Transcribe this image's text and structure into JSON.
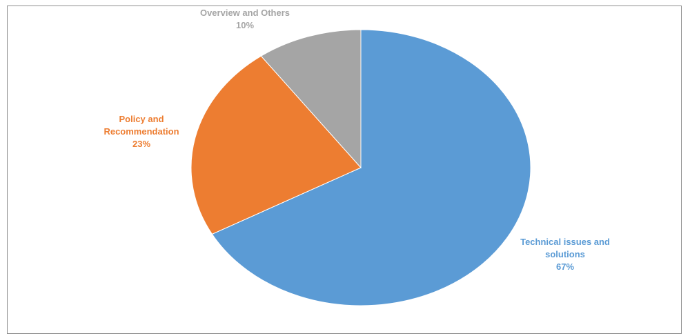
{
  "chart_data": {
    "type": "pie",
    "title": "",
    "slices": [
      {
        "name": "Technical issues and solutions",
        "label_lines": [
          "Technical issues and",
          "solutions"
        ],
        "value": 67,
        "value_label": "67%",
        "color": "#5b9bd5"
      },
      {
        "name": "Policy and Recommendation",
        "label_lines": [
          "Policy and",
          "Recommendation"
        ],
        "value": 23,
        "value_label": "23%",
        "color": "#ed7d31"
      },
      {
        "name": "Overview and Others",
        "label_lines": [
          "Overview and Others"
        ],
        "value": 10,
        "value_label": "10%",
        "color": "#a5a5a5"
      }
    ],
    "start_angle": "12 o'clock",
    "direction": "clockwise",
    "legend": "none",
    "labels": "outside end"
  }
}
